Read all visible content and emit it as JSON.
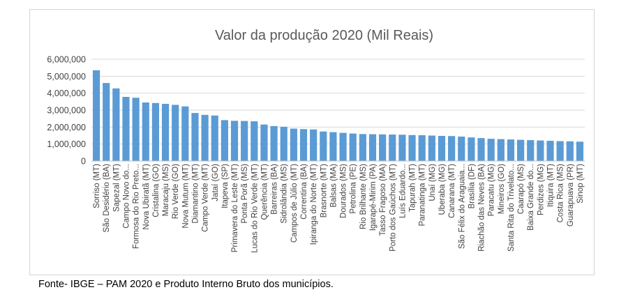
{
  "chart_data": {
    "type": "bar",
    "title": "Valor da produção 2020 (Mil Reais)",
    "xlabel": "",
    "ylabel": "",
    "ylim": [
      0,
      6000000
    ],
    "yticks": [
      0,
      1000000,
      2000000,
      3000000,
      4000000,
      5000000,
      6000000
    ],
    "ytick_labels": [
      "0",
      "1,000,000",
      "2,000,000",
      "3,000,000",
      "4,000,000",
      "5,000,000",
      "6,000,000"
    ],
    "grid": true,
    "legend": "none",
    "bar_color": "#5b9bd5",
    "categories": [
      "Sorriso (MT)",
      "São Desidério (BA)",
      "Sapezal (MT)",
      "Campo Novo do...",
      "Formosa do Rio Preto...",
      "Nova Ubiratã (MT)",
      "Cristalina (GO)",
      "Maracaju (MS)",
      "Rio Verde (GO)",
      "Nova Mutum (MT)",
      "Diamantino (MT)",
      "Campo Verde (MT)",
      "Jataí (GO)",
      "Itapeva (SP)",
      "Primavera do Leste (MT)",
      "Ponta Porã (MS)",
      "Lucas do Rio Verde (MT)",
      "Querência (MT)",
      "Barreiras (BA)",
      "Sidrolândia (MS)",
      "Campos de Júlio (MT)",
      "Correntina (BA)",
      "Ipiranga do Norte (MT)",
      "Brasnorte (MT)",
      "Balsas (MA)",
      "Dourados (MS)",
      "Petrolina (PE)",
      "Rio Brilhante (MS)",
      "Igarapé-Mirim (PA)",
      "Tasso Fragoso (MA)",
      "Porto dos Gaúchos (MT)",
      "Luís Eduardo...",
      "Tapurah (MT)",
      "Paranatinga (MT)",
      "Unaí (MG)",
      "Uberaba (MG)",
      "Canarana (MT)",
      "São Félix do Araguaia...",
      "Brasília (DF)",
      "Riachão das Neves (BA)",
      "Paracatu (MG)",
      "Mineiros (GO)",
      "Santa Rita do Trivelato...",
      "Caarapó (MS)",
      "Baixa Grande do...",
      "Perdizes (MG)",
      "Itiquira (MT)",
      "Costa Rica (MS)",
      "Guarapuava (PR)",
      "Sinop (MT)"
    ],
    "values": [
      5350000,
      4600000,
      4280000,
      3780000,
      3730000,
      3450000,
      3420000,
      3370000,
      3310000,
      3220000,
      2830000,
      2720000,
      2680000,
      2410000,
      2370000,
      2360000,
      2340000,
      2150000,
      2060000,
      2020000,
      1910000,
      1880000,
      1860000,
      1740000,
      1700000,
      1660000,
      1620000,
      1590000,
      1580000,
      1570000,
      1560000,
      1550000,
      1530000,
      1520000,
      1500000,
      1480000,
      1470000,
      1440000,
      1390000,
      1350000,
      1310000,
      1290000,
      1270000,
      1250000,
      1230000,
      1210000,
      1190000,
      1170000,
      1160000,
      1140000
    ]
  },
  "footer": {
    "source": "Fonte- IBGE – PAM 2020 e Produto Interno Bruto dos municípios."
  }
}
